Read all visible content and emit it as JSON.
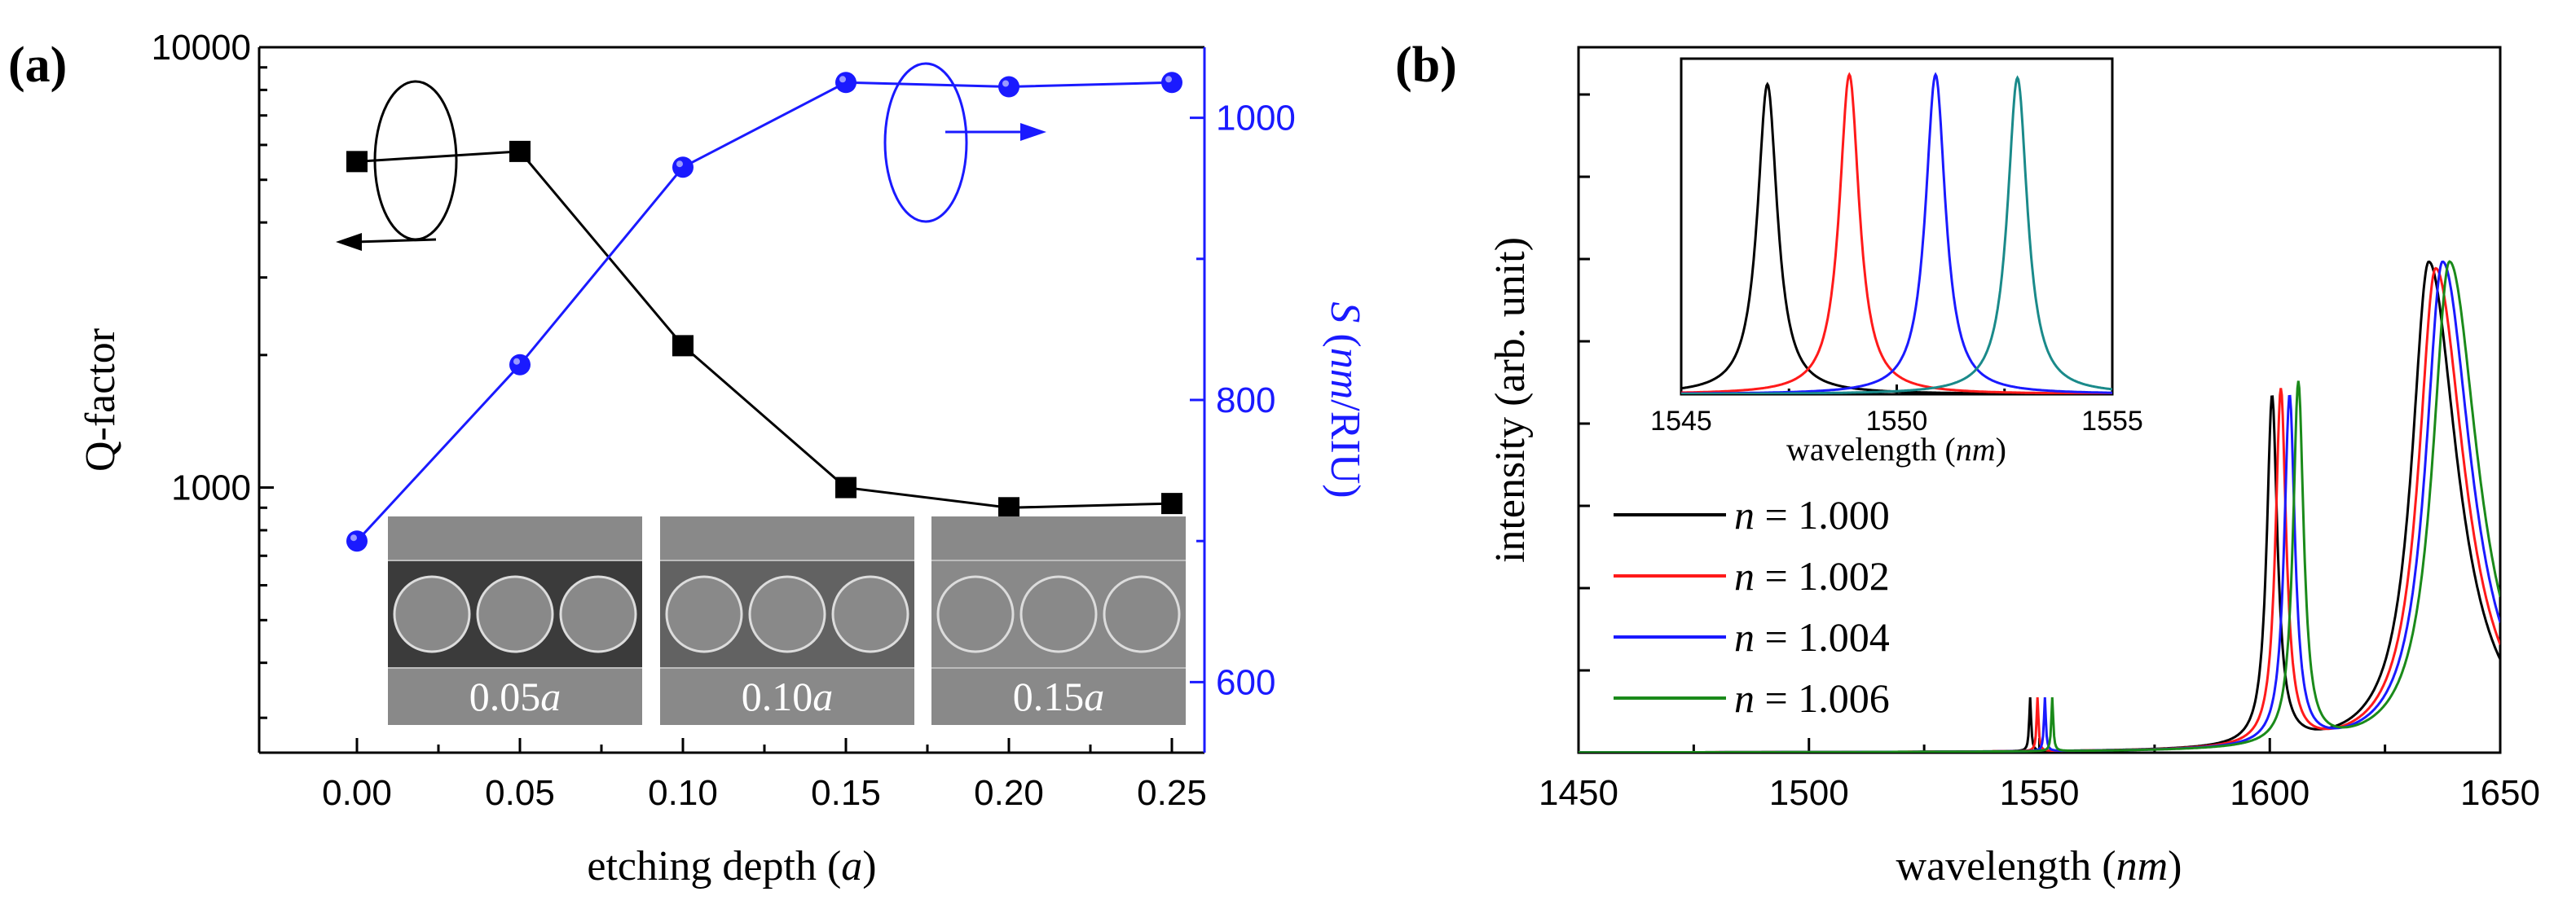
{
  "panel_a": {
    "label": "(a)",
    "xlabel_pre": "etching depth (",
    "xlabel_var": "a",
    "xlabel_post": ")",
    "ylabel_left": "Q-factor",
    "ylabel_right_var": "S",
    "ylabel_right_unit_open": " (",
    "ylabel_right_unit_italic": "nm",
    "ylabel_right_unit_rest": "/RIU)",
    "insets": [
      {
        "value": "0.05",
        "var": "a",
        "etch": 0.05
      },
      {
        "value": "0.10",
        "var": "a",
        "etch": 0.1
      },
      {
        "value": "0.15",
        "var": "a",
        "etch": 0.15
      }
    ],
    "colors": {
      "q": "#000000",
      "s": "#1a1aff",
      "inset_bg": "#898989",
      "inset_dark": "#3b3b3b"
    }
  },
  "panel_b": {
    "label": "(b)",
    "xlabel_pre": "wavelength (",
    "xlabel_var": "nm",
    "xlabel_post": ")",
    "ylabel": "intensity (arb. unit)",
    "inset_xlabel_pre": "wavelength (",
    "inset_xlabel_var": "nm",
    "inset_xlabel_post": ")",
    "legend": [
      {
        "var": "n",
        "text": " = 1.000",
        "color": "#000000"
      },
      {
        "var": "n",
        "text": " = 1.002",
        "color": "#ff1a1a"
      },
      {
        "var": "n",
        "text": " = 1.004",
        "color": "#1a1aff"
      },
      {
        "var": "n",
        "text": " = 1.006",
        "color": "#1a8a1a"
      }
    ]
  },
  "chart_data": [
    {
      "type": "line",
      "title": "",
      "xlabel": "etching depth (a)",
      "ylabel": "Q-factor",
      "y2label": "S (nm/RIU)",
      "x": [
        0.0,
        0.05,
        0.1,
        0.15,
        0.2,
        0.25
      ],
      "xlim": [
        -0.03,
        0.26
      ],
      "xticks": [
        "0.00",
        "0.05",
        "0.10",
        "0.15",
        "0.20",
        "0.25"
      ],
      "ylim": [
        250,
        10000
      ],
      "yscale": "log",
      "yticks": [
        "1000",
        "10000"
      ],
      "y2lim": [
        550,
        1050
      ],
      "y2ticks": [
        "600",
        "800",
        "1000"
      ],
      "series": [
        {
          "name": "Q-factor",
          "axis": "left",
          "marker": "square",
          "color": "#000000",
          "values": [
            5500,
            5800,
            2100,
            1000,
            900,
            920
          ]
        },
        {
          "name": "S",
          "axis": "right",
          "marker": "circle",
          "color": "#1a1aff",
          "values": [
            700,
            825,
            965,
            1025,
            1022,
            1025
          ]
        }
      ]
    },
    {
      "type": "line",
      "title": "",
      "xlabel": "wavelength (nm)",
      "ylabel": "intensity (arb. unit)",
      "xlim": [
        1450,
        1650
      ],
      "xticks": [
        "1450",
        "1500",
        "1550",
        "1600",
        "1650"
      ],
      "ylim": [
        0,
        1.05
      ],
      "series": [
        {
          "name": "n = 1.000",
          "color": "#000000",
          "peaks": [
            [
              1548.0,
              0.08,
              0.25
            ],
            [
              1600.5,
              0.52,
              1.4
            ],
            [
              1634.5,
              0.73,
              4.5
            ]
          ]
        },
        {
          "name": "n = 1.002",
          "color": "#ff1a1a",
          "peaks": [
            [
              1549.6,
              0.08,
              0.25
            ],
            [
              1602.4,
              0.53,
              1.4
            ],
            [
              1636.0,
              0.72,
              4.5
            ]
          ]
        },
        {
          "name": "n = 1.004",
          "color": "#1a1aff",
          "peaks": [
            [
              1551.2,
              0.08,
              0.25
            ],
            [
              1604.3,
              0.52,
              1.4
            ],
            [
              1637.5,
              0.73,
              4.5
            ]
          ]
        },
        {
          "name": "n = 1.006",
          "color": "#1a8a1a",
          "peaks": [
            [
              1552.8,
              0.08,
              0.25
            ],
            [
              1606.2,
              0.54,
              1.4
            ],
            [
              1639.0,
              0.73,
              4.5
            ]
          ]
        }
      ],
      "inset": {
        "type": "line",
        "xlabel": "wavelength (nm)",
        "xlim": [
          1545,
          1555
        ],
        "xticks": [
          "1545",
          "1550",
          "1555"
        ],
        "ylim": [
          0,
          1.05
        ],
        "series": [
          {
            "name": "n = 1.000",
            "color": "#000000",
            "peak": 1547.0,
            "height": 0.97,
            "width": 0.28
          },
          {
            "name": "n = 1.002",
            "color": "#ff1a1a",
            "peak": 1548.9,
            "height": 1.0,
            "width": 0.28
          },
          {
            "name": "n = 1.004",
            "color": "#1a1aff",
            "peak": 1550.9,
            "height": 1.0,
            "width": 0.28
          },
          {
            "name": "n = 1.006",
            "color": "#1a8a8a",
            "peak": 1552.8,
            "height": 0.99,
            "width": 0.28
          }
        ]
      }
    }
  ]
}
